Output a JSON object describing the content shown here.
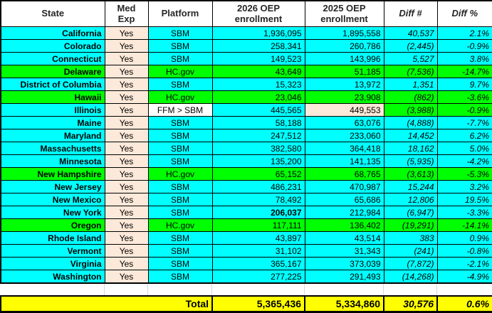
{
  "colors": {
    "cyan": "#00FFFF",
    "green": "#00FF00",
    "peach": "#FDE9D9",
    "yellow": "#FFFF00",
    "border": "#000000",
    "gap_gridline": "#D9D9D9"
  },
  "table": {
    "columns": [
      {
        "id": "state",
        "label": "State"
      },
      {
        "id": "med",
        "label": "Med Exp"
      },
      {
        "id": "platform",
        "label": "Platform"
      },
      {
        "id": "e2026",
        "label": "2026 OEP enrollment"
      },
      {
        "id": "e2025",
        "label": "2025 OEP enrollment"
      },
      {
        "id": "diffn",
        "label": "Diff #",
        "italic": true
      },
      {
        "id": "diffp",
        "label": "Diff %",
        "italic": true
      }
    ],
    "rows": [
      {
        "state": "California",
        "med": "Yes",
        "platform": "SBM",
        "e2026": "1,936,095",
        "e2025": "1,895,558",
        "diffn": "40,537",
        "diffp": "2.1%",
        "row_color": "cyan"
      },
      {
        "state": "Colorado",
        "med": "Yes",
        "platform": "SBM",
        "e2026": "258,341",
        "e2025": "260,786",
        "diffn": "(2,445)",
        "diffp": "-0.9%",
        "row_color": "cyan"
      },
      {
        "state": "Connecticut",
        "med": "Yes",
        "platform": "SBM",
        "e2026": "149,523",
        "e2025": "143,996",
        "diffn": "5,527",
        "diffp": "3.8%",
        "row_color": "cyan"
      },
      {
        "state": "Delaware",
        "med": "Yes",
        "platform": "HC.gov",
        "e2026": "43,649",
        "e2025": "51,185",
        "diffn": "(7,536)",
        "diffp": "-14.7%",
        "row_color": "green"
      },
      {
        "state": "District of Columbia",
        "med": "Yes",
        "platform": "SBM",
        "e2026": "15,323",
        "e2025": "13,972",
        "diffn": "1,351",
        "diffp": "9.7%",
        "row_color": "cyan"
      },
      {
        "state": "Hawaii",
        "med": "Yes",
        "platform": "HC.gov",
        "e2026": "23,046",
        "e2025": "23,908",
        "diffn": "(862)",
        "diffp": "-3.6%",
        "row_color": "green"
      },
      {
        "state": "Illinois",
        "med": "Yes",
        "platform": "FFM > SBM",
        "e2026": "445,565",
        "e2025": "449,553",
        "diffn": "(3,988)",
        "diffp": "-0.9%",
        "row_color": "cyan",
        "platform_small": true,
        "overrides": {
          "platform": "white",
          "e2025": "peach",
          "diffn": "green",
          "diffp": "green"
        }
      },
      {
        "state": "Maine",
        "med": "Yes",
        "platform": "SBM",
        "e2026": "58,188",
        "e2025": "63,076",
        "diffn": "(4,888)",
        "diffp": "-7.7%",
        "row_color": "cyan"
      },
      {
        "state": "Maryland",
        "med": "Yes",
        "platform": "SBM",
        "e2026": "247,512",
        "e2025": "233,060",
        "diffn": "14,452",
        "diffp": "6.2%",
        "row_color": "cyan"
      },
      {
        "state": "Massachusetts",
        "med": "Yes",
        "platform": "SBM",
        "e2026": "382,580",
        "e2025": "364,418",
        "diffn": "18,162",
        "diffp": "5.0%",
        "row_color": "cyan"
      },
      {
        "state": "Minnesota",
        "med": "Yes",
        "platform": "SBM",
        "e2026": "135,200",
        "e2025": "141,135",
        "diffn": "(5,935)",
        "diffp": "-4.2%",
        "row_color": "cyan"
      },
      {
        "state": "New Hampshire",
        "med": "Yes",
        "platform": "HC.gov",
        "e2026": "65,152",
        "e2025": "68,765",
        "diffn": "(3,613)",
        "diffp": "-5.3%",
        "row_color": "green"
      },
      {
        "state": "New Jersey",
        "med": "Yes",
        "platform": "SBM",
        "e2026": "486,231",
        "e2025": "470,987",
        "diffn": "15,244",
        "diffp": "3.2%",
        "row_color": "cyan"
      },
      {
        "state": "New Mexico",
        "med": "Yes",
        "platform": "SBM",
        "e2026": "78,492",
        "e2025": "65,686",
        "diffn": "12,806",
        "diffp": "19.5%",
        "row_color": "cyan"
      },
      {
        "state": "New York",
        "med": "Yes",
        "platform": "SBM",
        "e2026": "206,037",
        "e2025": "212,984",
        "diffn": "(6,947)",
        "diffp": "-3.3%",
        "row_color": "cyan",
        "bold_fields": [
          "e2026"
        ]
      },
      {
        "state": "Oregon",
        "med": "Yes",
        "platform": "HC.gov",
        "e2026": "117,111",
        "e2025": "136,402",
        "diffn": "(19,291)",
        "diffp": "-14.1%",
        "row_color": "green"
      },
      {
        "state": "Rhode Island",
        "med": "Yes",
        "platform": "SBM",
        "e2026": "43,897",
        "e2025": "43,514",
        "diffn": "383",
        "diffp": "0.9%",
        "row_color": "cyan"
      },
      {
        "state": "Vermont",
        "med": "Yes",
        "platform": "SBM",
        "e2026": "31,102",
        "e2025": "31,343",
        "diffn": "(241)",
        "diffp": "-0.8%",
        "row_color": "cyan"
      },
      {
        "state": "Virginia",
        "med": "Yes",
        "platform": "SBM",
        "e2026": "365,167",
        "e2025": "373,039",
        "diffn": "(7,872)",
        "diffp": "-2.1%",
        "row_color": "cyan"
      },
      {
        "state": "Washington",
        "med": "Yes",
        "platform": "SBM",
        "e2026": "277,225",
        "e2025": "291,493",
        "diffn": "(14,268)",
        "diffp": "-4.9%",
        "row_color": "cyan"
      }
    ],
    "totals": {
      "label": "Total",
      "e2026": "5,365,436",
      "e2025": "5,334,860",
      "diffn": "30,576",
      "diffp": "0.6%"
    }
  }
}
